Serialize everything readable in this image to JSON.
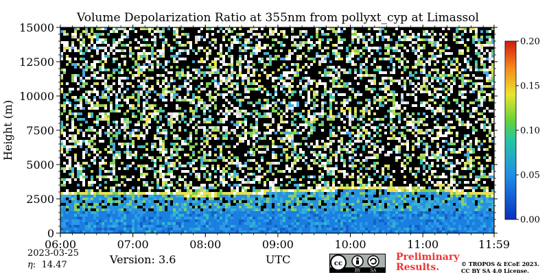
{
  "chart_data": {
    "type": "heatmap",
    "title": "Volume Depolarization Ratio at 355nm from pollyxt_cyp at Limassol",
    "xlabel": "UTC",
    "ylabel": "Height (m)",
    "x_tick_labels": [
      "06:00",
      "07:00",
      "08:00",
      "09:00",
      "10:00",
      "11:00",
      "11:59"
    ],
    "x_ticks_hours": [
      6,
      7,
      8,
      9,
      10,
      11,
      11.983
    ],
    "xlim_hours": [
      6,
      11.983
    ],
    "y_ticks": [
      0,
      2500,
      5000,
      7500,
      10000,
      12500,
      15000
    ],
    "y_tick_labels": [
      "0",
      "2500",
      "5000",
      "7500",
      "10000",
      "12500",
      "15000"
    ],
    "ylim": [
      0,
      15000
    ],
    "colorbar": {
      "range": [
        0,
        0.2
      ],
      "ticks": [
        0,
        0.05,
        0.1,
        0.15,
        0.2
      ],
      "tick_labels": [
        "0.00",
        "0.05",
        "0.10",
        "0.15",
        "0.20"
      ],
      "colormap": "jet"
    },
    "features": {
      "aerosol_layer_top_m": [
        {
          "hour": 6.0,
          "height": 3000
        },
        {
          "hour": 7.0,
          "height": 3050
        },
        {
          "hour": 8.0,
          "height": 2900
        },
        {
          "hour": 9.0,
          "height": 3200
        },
        {
          "hour": 10.0,
          "height": 3400
        },
        {
          "hour": 11.0,
          "height": 3300
        },
        {
          "hour": 11.983,
          "height": 2900
        }
      ],
      "low_depol_layer_m": [
        0,
        1600
      ],
      "noise_region_above_m": 3000
    }
  },
  "footer": {
    "date": "2023-03-25",
    "eta_symbol": "η",
    "eta_value": "14.47",
    "version": "Version: 3.6",
    "preliminary_line1": "Preliminary",
    "preliminary_line2": "Results.",
    "copyright_line1": "© TROPOS & ECoE 2023.",
    "copyright_line2": "CC BY SA 4.0 License."
  },
  "license_badge": {
    "cc": "cc",
    "by": "BY",
    "sa": "SA"
  },
  "colors": {
    "background": "#ffffff",
    "preliminary": "#ee3333",
    "noise_background": "#000000"
  }
}
